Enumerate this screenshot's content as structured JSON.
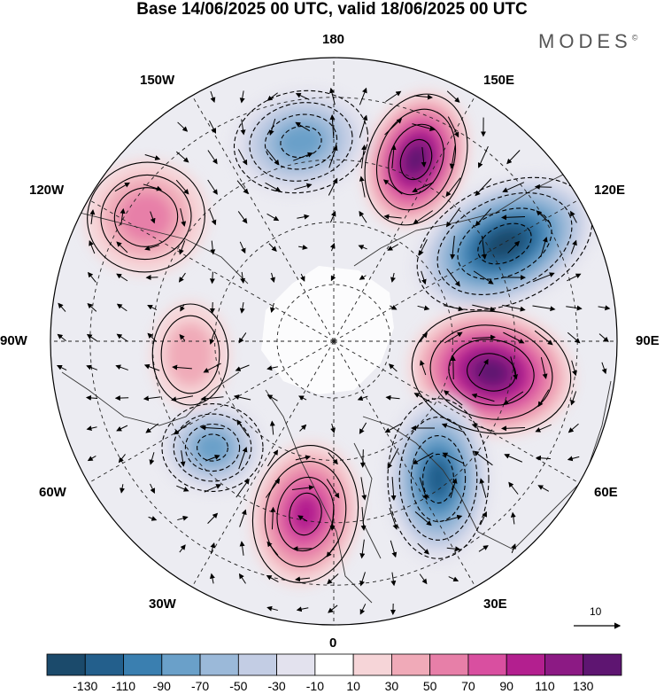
{
  "title": "Base 14/06/2025 00 UTC, valid 18/06/2025 00 UTC",
  "brand": "MODES",
  "brand_mark": "©",
  "longitude_labels": {
    "n180": "180",
    "e150": "150E",
    "e120": "120E",
    "e90": "90E",
    "e60": "60E",
    "e30": "30E",
    "n0": "0",
    "w30": "30W",
    "w60": "60W",
    "w90": "90W",
    "w120": "120W",
    "w150": "150W"
  },
  "reference_vector": "10",
  "colorbar": {
    "colors": [
      "#1b4a6b",
      "#235f8c",
      "#3a7fb0",
      "#6aa0c9",
      "#9bb9d9",
      "#c3cde4",
      "#e3e2ee",
      "#ffffff",
      "#f6d5d8",
      "#f0aab8",
      "#e77fa8",
      "#d94fa0",
      "#b31f8f",
      "#8c1a84",
      "#5e1571"
    ],
    "labels": [
      "-130",
      "-110",
      "-90",
      "-70",
      "-50",
      "-30",
      "-10",
      "10",
      "30",
      "50",
      "70",
      "90",
      "110",
      "130"
    ]
  },
  "anomaly_centers": [
    {
      "name": "150E positive",
      "value": 130
    },
    {
      "name": "120E negative",
      "value": -130
    },
    {
      "name": "90E positive",
      "value": 130
    },
    {
      "name": "30E negative",
      "value": -110
    },
    {
      "name": "0 positive",
      "value": 90
    },
    {
      "name": "60W negative",
      "value": -80
    },
    {
      "name": "120W positive",
      "value": 60
    },
    {
      "name": "180 negative",
      "value": -80
    },
    {
      "name": "90W positive",
      "value": 40
    }
  ]
}
